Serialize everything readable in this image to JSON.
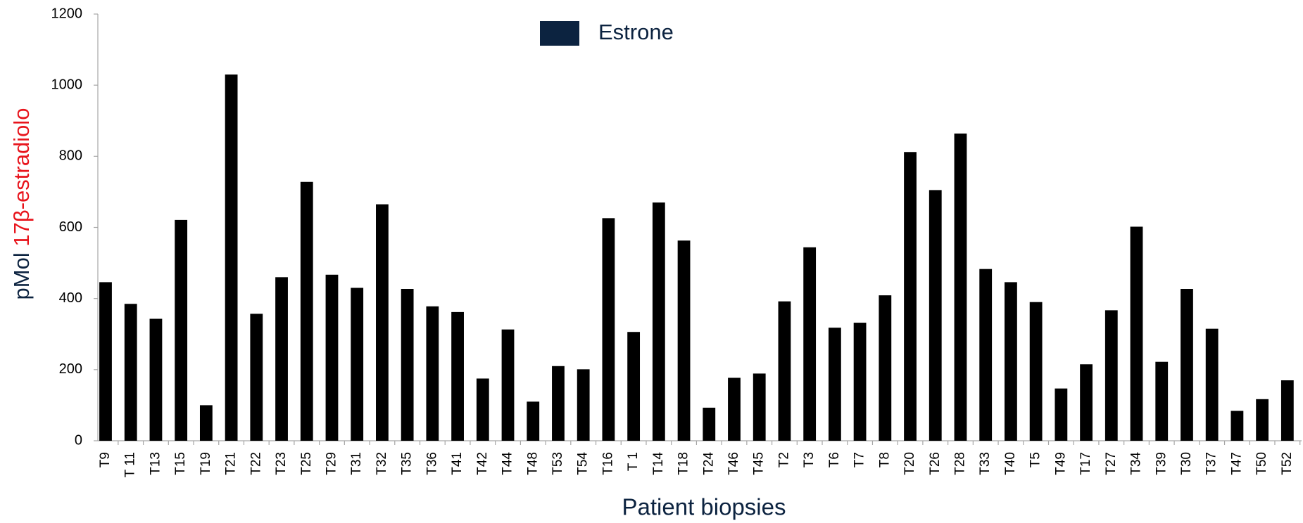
{
  "chart_data": {
    "type": "bar",
    "xlabel": "Patient biopsies",
    "ylabel": [
      "pMol",
      "17β-estradiolo"
    ],
    "categories": [
      "T9",
      "T 11",
      "T13",
      "T15",
      "T19",
      "T21",
      "T22",
      "T23",
      "T25",
      "T29",
      "T31",
      "T32",
      "T35",
      "T36",
      "T41",
      "T42",
      "T44",
      "T48",
      "T53",
      "T54",
      "T16",
      "T 1",
      "T14",
      "T18",
      "T24",
      "T46",
      "T45",
      "T2",
      "T3",
      "T6",
      "T7",
      "T8",
      "T20",
      "T26",
      "T28",
      "T33",
      "T40",
      "T5",
      "T49",
      "T17",
      "T27",
      "T34",
      "T39",
      "T30",
      "T37",
      "T47",
      "T50",
      "T52"
    ],
    "series": [
      {
        "name": "Estrone",
        "color": "#000000",
        "legend_color": "#0c2340",
        "values": [
          446,
          385,
          343,
          621,
          100,
          1030,
          357,
          460,
          728,
          467,
          430,
          665,
          427,
          378,
          362,
          175,
          313,
          110,
          210,
          201,
          626,
          306,
          670,
          563,
          93,
          177,
          189,
          392,
          544,
          318,
          332,
          409,
          812,
          705,
          864,
          483,
          446,
          390,
          147,
          215,
          367,
          602,
          222,
          427,
          315,
          84,
          117,
          170
        ]
      }
    ],
    "ylim": [
      0,
      1200
    ],
    "yticks": [
      0,
      200,
      400,
      600,
      800,
      1000,
      1200
    ],
    "grid": false,
    "legend": "top"
  }
}
